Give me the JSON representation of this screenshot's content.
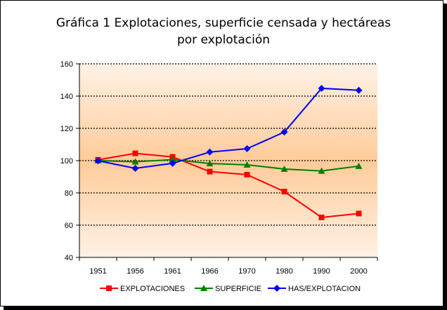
{
  "chart_data": {
    "type": "line",
    "title_lines": [
      "Gráfica 1 Explotaciones, superficie censada y hectáreas",
      "por explotación"
    ],
    "categories": [
      "1951",
      "1956",
      "1961",
      "1966",
      "1970",
      "1980",
      "1990",
      "2000"
    ],
    "y_ticks": [
      "40",
      "60",
      "80",
      "100",
      "120",
      "140",
      "160"
    ],
    "ylim": [
      40,
      160
    ],
    "grid": "horizontal dotted",
    "legend_position": "bottom",
    "series": [
      {
        "name": "EXPLOTACIONES",
        "color": "#ff0000",
        "marker": "square",
        "values": [
          100.5,
          104.5,
          102.3,
          93.2,
          91.3,
          80.8,
          64.8,
          67.2
        ]
      },
      {
        "name": "SUPERFICIE",
        "color": "#008000",
        "marker": "triangle",
        "values": [
          100.0,
          99.3,
          100.6,
          98.2,
          97.4,
          94.8,
          93.6,
          96.6
        ]
      },
      {
        "name": "HAS/EXPLOTACION",
        "color": "#0000ff",
        "marker": "diamond",
        "values": [
          99.9,
          95.2,
          98.3,
          105.3,
          107.4,
          117.7,
          144.8,
          143.6
        ]
      }
    ]
  }
}
